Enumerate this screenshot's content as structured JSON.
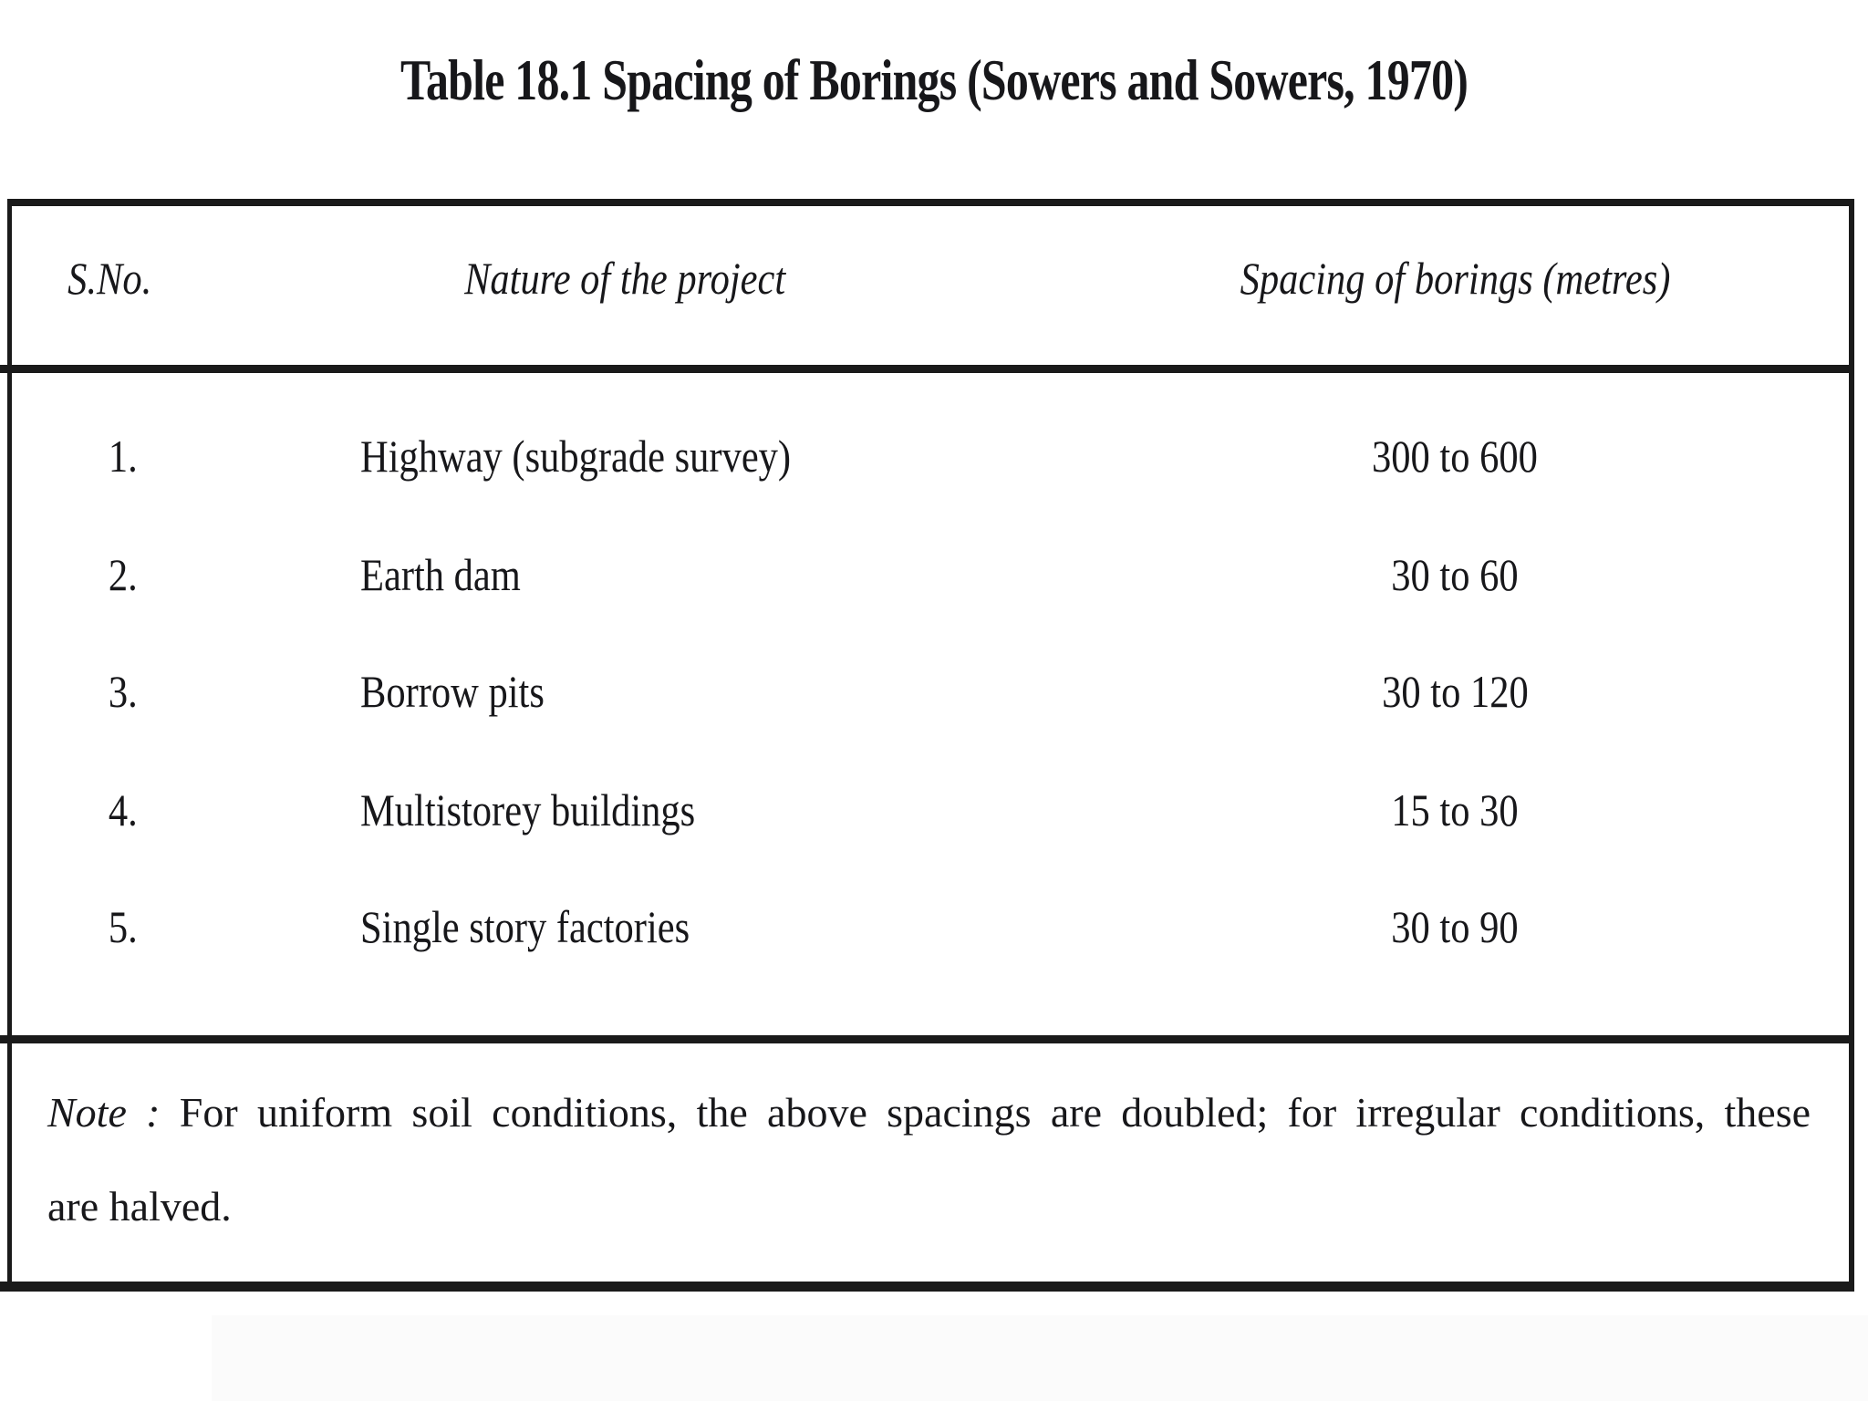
{
  "caption": "Table 18.1 Spacing of Borings (Sowers and Sowers, 1970)",
  "table": {
    "columns": [
      "S.No.",
      "Nature of the project",
      "Spacing of borings (metres)"
    ],
    "rows": [
      {
        "sno": "1.",
        "project": "Highway (subgrade survey)",
        "spacing": "300 to 600"
      },
      {
        "sno": "2.",
        "project": "Earth dam",
        "spacing": "30 to 60"
      },
      {
        "sno": "3.",
        "project": "Borrow pits",
        "spacing": "30 to 120"
      },
      {
        "sno": "4.",
        "project": "Multistorey buildings",
        "spacing": "15 to 30"
      },
      {
        "sno": "5.",
        "project": "Single story factories",
        "spacing": "30 to 90"
      }
    ],
    "note": {
      "label": "Note :",
      "line1": "For uniform soil conditions, the above spacings are doubled; for irregular conditions, these",
      "line2": "are halved."
    }
  },
  "colors": {
    "text": "#17171a",
    "border": "#1a1a1a",
    "background": "#ffffff"
  }
}
